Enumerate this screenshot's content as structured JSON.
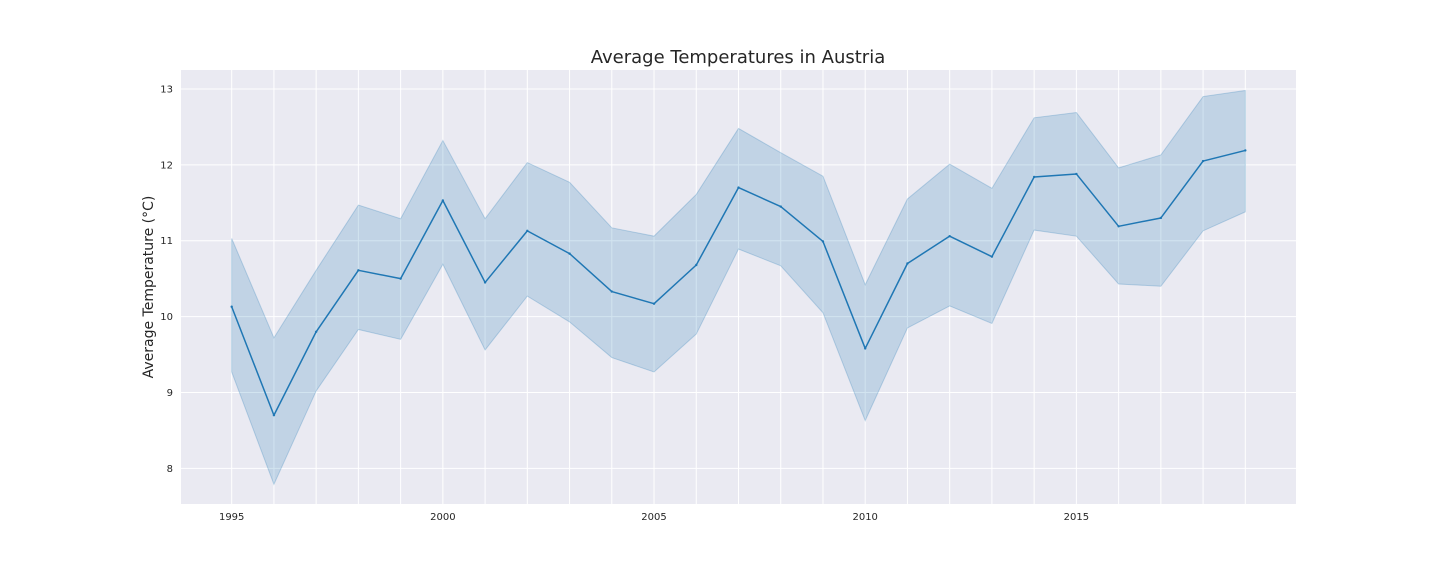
{
  "chart_data": {
    "type": "line",
    "title": "Average Temperatures in Austria",
    "xlabel": "",
    "ylabel": "Average Temperature (°C)",
    "xlim": [
      1993.8,
      2020.2
    ],
    "ylim": [
      7.53,
      13.25
    ],
    "xticks": [
      1995,
      2000,
      2005,
      2010,
      2015
    ],
    "yticks": [
      8,
      9,
      10,
      11,
      12,
      13
    ],
    "grid": true,
    "legend": "none",
    "colors": {
      "line": "#1f77b4",
      "band": "#1f77b4",
      "background": "#eaeaf2",
      "grid": "#ffffff"
    },
    "x": [
      1995,
      1996,
      1997,
      1998,
      1999,
      2000,
      2001,
      2002,
      2003,
      2004,
      2005,
      2006,
      2007,
      2008,
      2009,
      2010,
      2011,
      2012,
      2013,
      2014,
      2015,
      2016,
      2017,
      2018,
      2019
    ],
    "series": [
      {
        "values": [
          10.13,
          8.7,
          9.8,
          10.61,
          10.5,
          11.53,
          10.45,
          11.13,
          10.83,
          10.33,
          10.17,
          10.68,
          11.7,
          11.45,
          10.99,
          9.58,
          10.7,
          11.06,
          10.79,
          11.84,
          11.88,
          11.19,
          11.3,
          12.05,
          12.19
        ],
        "ci_lower": [
          9.27,
          7.79,
          9.02,
          9.83,
          9.7,
          10.69,
          9.56,
          10.27,
          9.93,
          9.46,
          9.27,
          9.77,
          10.89,
          10.67,
          10.05,
          8.63,
          9.85,
          10.14,
          9.91,
          11.14,
          11.06,
          10.43,
          10.4,
          11.13,
          11.38
        ],
        "ci_upper": [
          11.03,
          9.72,
          10.61,
          11.47,
          11.29,
          12.32,
          11.29,
          12.03,
          11.77,
          11.17,
          11.06,
          11.61,
          12.48,
          12.16,
          11.85,
          10.42,
          11.55,
          12.01,
          11.69,
          12.62,
          12.69,
          11.96,
          12.13,
          12.9,
          12.98
        ]
      }
    ]
  }
}
